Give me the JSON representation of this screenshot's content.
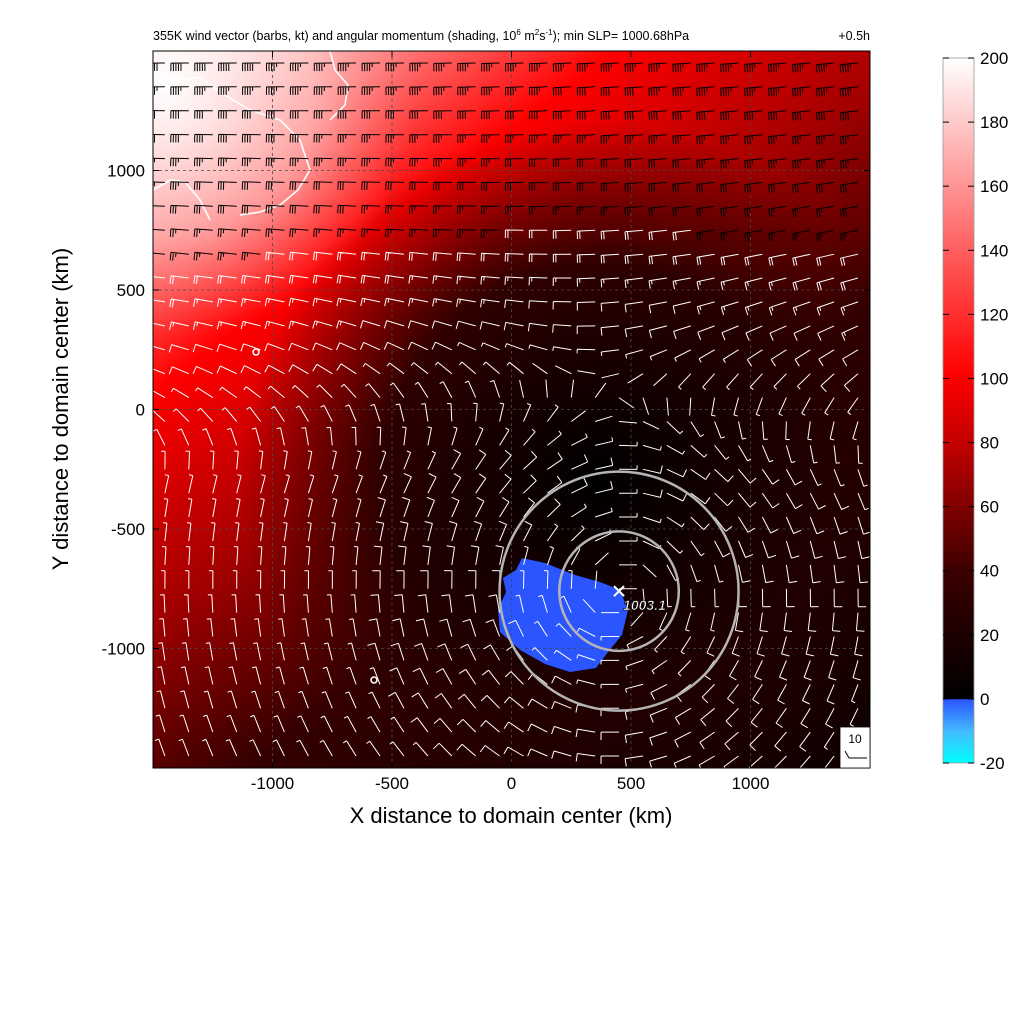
{
  "chart_data": {
    "type": "heatmap",
    "title": "355K wind vector (barbs, kt) and angular momentum (shading, 10",
    "title_exp": "6",
    "title_unit_mid": " m",
    "title_exp2": "2",
    "title_unit_end": "s",
    "title_exp3": "-1",
    "title_tail": "); min SLP= 1000.68hPa",
    "time_label": "+0.5h",
    "xlabel": "X distance to domain center (km)",
    "ylabel": "Y distance to domain center (km)",
    "xlim": [
      -1500,
      1500
    ],
    "ylim": [
      -1500,
      1500
    ],
    "xticks": [
      -1000,
      -500,
      0,
      500,
      1000
    ],
    "yticks": [
      -1000,
      -500,
      0,
      500,
      1000
    ],
    "xtick_labels": [
      "-1000",
      "-500",
      "0",
      "500",
      "1000"
    ],
    "ytick_labels": [
      "-1000",
      "-500",
      "0",
      "500",
      "1000"
    ],
    "grid": true,
    "colorbar": {
      "ticks": [
        -20,
        0,
        20,
        40,
        60,
        80,
        100,
        120,
        140,
        160,
        180,
        200
      ],
      "labels": [
        "-20",
        "0",
        "20",
        "40",
        "60",
        "80",
        "100",
        "120",
        "140",
        "160",
        "180",
        "200"
      ],
      "range": [
        -20,
        200
      ],
      "colors": [
        "#00ffff",
        "#2255ff",
        "#000000",
        "#ff0000",
        "#ffffff"
      ]
    },
    "slp_center": {
      "x": 450,
      "y": -760,
      "label": "1003.1"
    },
    "range_rings_km": {
      "center": [
        450,
        -760
      ],
      "radii": [
        500,
        1000
      ]
    },
    "barb_legend": {
      "label": "10"
    },
    "barb_grid": {
      "spacing_km": 100
    }
  },
  "colors": {
    "accent_red": "#ff0000",
    "negative_blue": "#2a55ff",
    "ring": "#b4b4b4"
  }
}
